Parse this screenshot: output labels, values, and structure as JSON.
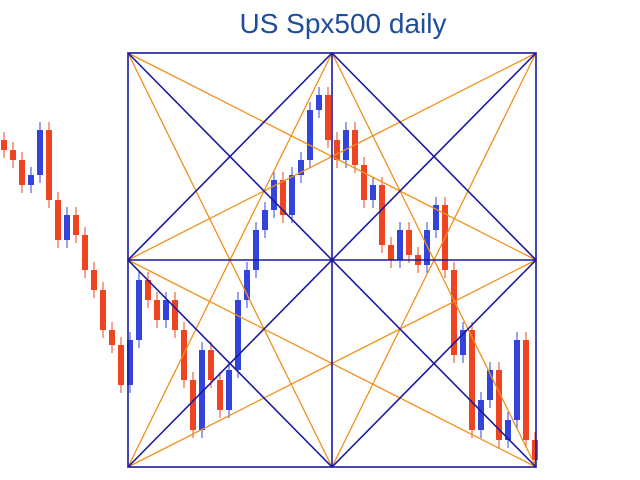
{
  "chart_data": {
    "type": "candlestick",
    "title": "US Spx500 daily",
    "open": [
      340,
      330,
      320,
      295,
      305,
      350,
      280,
      240,
      265,
      245,
      210,
      190,
      150,
      135,
      95,
      140,
      200,
      180,
      160,
      180,
      150,
      100,
      50,
      130,
      100,
      70,
      110,
      180,
      210,
      250,
      270,
      300,
      265,
      305,
      320,
      370,
      385,
      340,
      320,
      350,
      315,
      280,
      295,
      235,
      220,
      250,
      225,
      215,
      250,
      275,
      210,
      125,
      150,
      50,
      80,
      110,
      40,
      60,
      140,
      40
    ],
    "high": [
      348,
      338,
      328,
      313,
      358,
      358,
      288,
      273,
      273,
      253,
      218,
      198,
      158,
      143,
      148,
      208,
      208,
      188,
      188,
      188,
      158,
      108,
      138,
      138,
      108,
      118,
      188,
      218,
      258,
      278,
      308,
      308,
      313,
      328,
      378,
      393,
      393,
      348,
      358,
      358,
      323,
      303,
      303,
      243,
      258,
      258,
      233,
      258,
      283,
      283,
      218,
      158,
      158,
      88,
      118,
      118,
      68,
      148,
      148,
      48
    ],
    "low": [
      322,
      312,
      287,
      287,
      297,
      272,
      232,
      232,
      237,
      202,
      182,
      142,
      127,
      87,
      87,
      132,
      172,
      152,
      152,
      142,
      92,
      42,
      42,
      92,
      62,
      62,
      102,
      172,
      202,
      242,
      262,
      257,
      257,
      297,
      312,
      362,
      332,
      312,
      312,
      307,
      272,
      272,
      227,
      212,
      212,
      217,
      207,
      207,
      242,
      202,
      117,
      117,
      42,
      42,
      72,
      32,
      32,
      52,
      32,
      12
    ],
    "close": [
      330,
      320,
      295,
      305,
      350,
      280,
      240,
      265,
      245,
      210,
      190,
      150,
      135,
      95,
      140,
      200,
      180,
      160,
      180,
      150,
      100,
      50,
      130,
      100,
      70,
      110,
      180,
      210,
      250,
      270,
      300,
      265,
      305,
      320,
      370,
      385,
      340,
      320,
      350,
      315,
      280,
      295,
      235,
      220,
      250,
      225,
      215,
      250,
      275,
      210,
      125,
      150,
      50,
      80,
      110,
      40,
      60,
      140,
      40,
      20
    ],
    "ylim": [
      0,
      480
    ],
    "up_color": "#3344dd",
    "down_color": "#ee4422"
  }
}
